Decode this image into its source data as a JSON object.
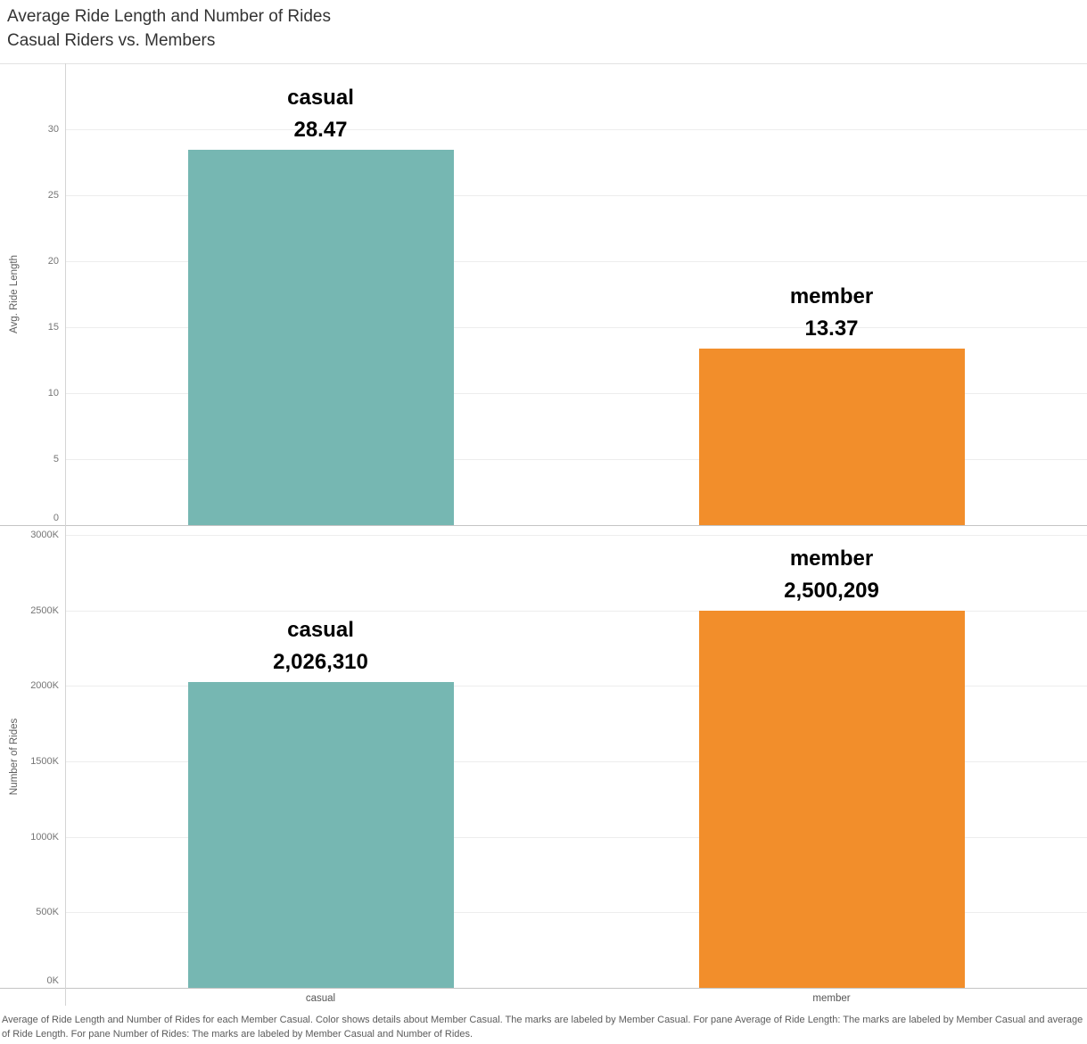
{
  "title": {
    "line1": "Average Ride Length and Number of Rides",
    "line2": "Casual Riders vs. Members"
  },
  "colors": {
    "casual": "#76b7b2",
    "member": "#f28e2b"
  },
  "chart_data": [
    {
      "type": "bar",
      "pane": "Average of Ride Length",
      "ylabel": "Avg. Ride Length",
      "categories": [
        "casual",
        "member"
      ],
      "values": [
        28.47,
        13.37
      ],
      "bar_name_labels": [
        "casual",
        "member"
      ],
      "bar_value_labels": [
        "28.47",
        "13.37"
      ],
      "bar_colors": [
        "#76b7b2",
        "#f28e2b"
      ],
      "yticks": [
        0,
        5,
        10,
        15,
        20,
        25,
        30
      ],
      "ytick_labels": [
        "0",
        "5",
        "10",
        "15",
        "20",
        "25",
        "30"
      ],
      "ylim": [
        0,
        35
      ],
      "grid": "horizontal",
      "legend": "none"
    },
    {
      "type": "bar",
      "pane": "Number of Rides",
      "ylabel": "Number of Rides",
      "categories": [
        "casual",
        "member"
      ],
      "values": [
        2026310,
        2500209
      ],
      "bar_name_labels": [
        "casual",
        "member"
      ],
      "bar_value_labels": [
        "2,026,310",
        "2,500,209"
      ],
      "bar_colors": [
        "#76b7b2",
        "#f28e2b"
      ],
      "yticks": [
        0,
        500000,
        1000000,
        1500000,
        2000000,
        2500000,
        3000000
      ],
      "ytick_labels": [
        "0K",
        "500K",
        "1000K",
        "1500K",
        "2000K",
        "2500K",
        "3000K"
      ],
      "ylim": [
        0,
        3065000
      ],
      "grid": "horizontal",
      "legend": "none"
    }
  ],
  "x_axis": {
    "categories": [
      "casual",
      "member"
    ]
  },
  "caption": "Average of Ride Length and Number of Rides for each Member Casual.  Color shows details about Member Casual.  The marks are labeled by Member Casual.  For pane Average of Ride Length:  The marks are labeled by Member Casual and average of Ride Length.  For pane Number of Rides:  The marks are labeled by Member Casual and Number of Rides."
}
